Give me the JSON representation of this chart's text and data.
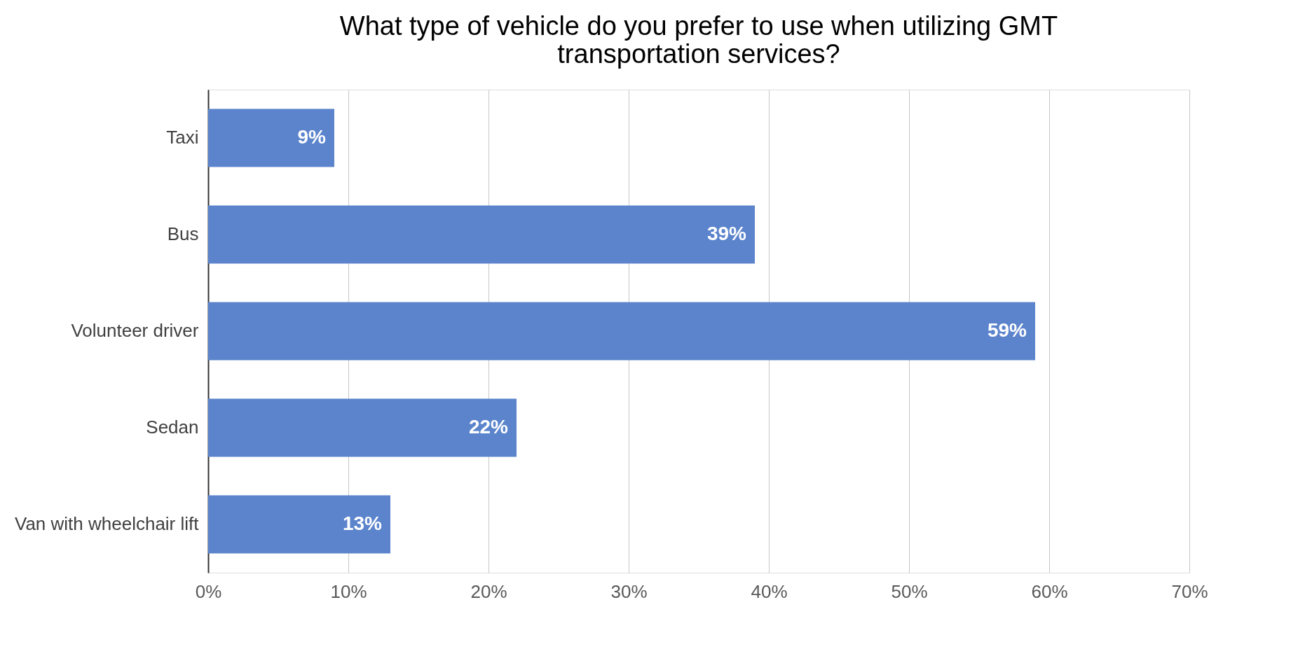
{
  "chart_data": {
    "type": "bar",
    "orientation": "horizontal",
    "title": [
      "What type of vehicle do you prefer to use when utilizing GMT",
      "transportation services?"
    ],
    "categories": [
      "Taxi",
      "Bus",
      "Volunteer driver",
      "Sedan",
      "Van with wheelchair lift"
    ],
    "values": [
      9,
      39,
      59,
      22,
      13
    ],
    "value_labels": [
      "9%",
      "39%",
      "59%",
      "22%",
      "13%"
    ],
    "color": "#5b84cc",
    "xlim": [
      0,
      70
    ],
    "xticks": [
      {
        "value": 0,
        "label": "0%"
      },
      {
        "value": 10,
        "label": "10%"
      },
      {
        "value": 20,
        "label": "20%"
      },
      {
        "value": 30,
        "label": "30%"
      },
      {
        "value": 40,
        "label": "40%"
      },
      {
        "value": 50,
        "label": "50%"
      },
      {
        "value": 60,
        "label": "60%"
      },
      {
        "value": 70,
        "label": "70%"
      }
    ],
    "grid": "x"
  }
}
